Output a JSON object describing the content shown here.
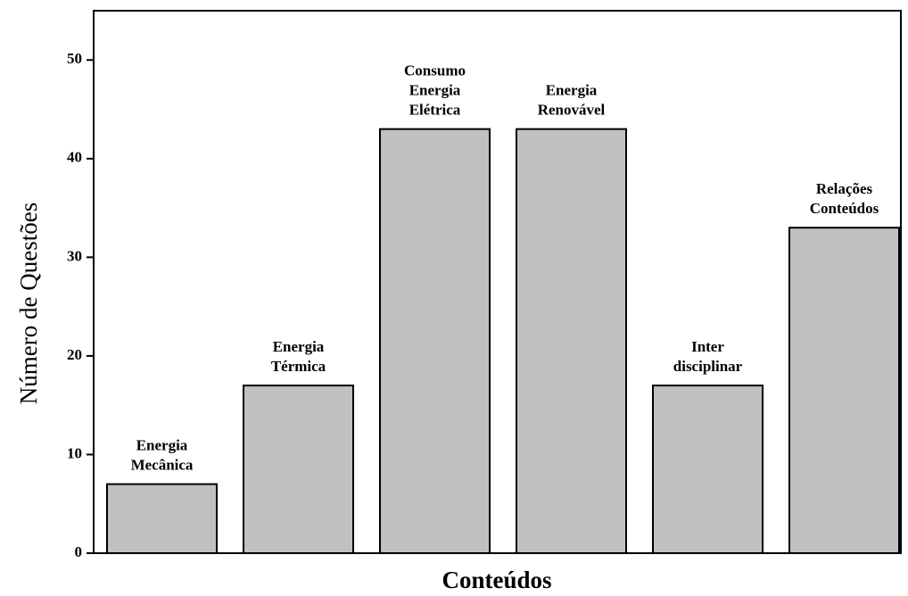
{
  "chart_data": {
    "type": "bar",
    "categories": [
      [
        "Energia",
        "Mecânica"
      ],
      [
        "Energia",
        "Térmica"
      ],
      [
        "Consumo",
        "Energia",
        "Elétrica"
      ],
      [
        "Energia",
        "Renovável"
      ],
      [
        "Inter",
        "disciplinar"
      ],
      [
        "Relações",
        "Conteúdos"
      ]
    ],
    "values": [
      7,
      17,
      43,
      43,
      17,
      33
    ],
    "color": "#c0c0c0",
    "xlabel": "Conteúdos",
    "ylabel": "Número de Questões",
    "ylim": [
      0,
      55
    ],
    "yticks": [
      0,
      10,
      20,
      30,
      40,
      50
    ],
    "grid": false
  }
}
